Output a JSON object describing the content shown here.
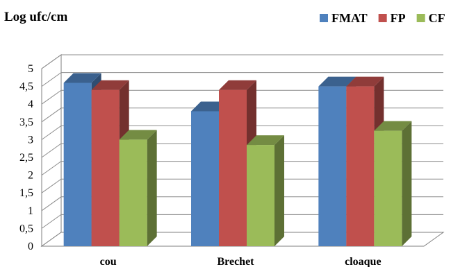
{
  "chart_data": {
    "type": "bar",
    "title": "",
    "xlabel": "",
    "ylabel": "Log ufc/cm",
    "categories": [
      "cou",
      "Brechet",
      "cloaque"
    ],
    "series": [
      {
        "name": "FMAT",
        "values": [
          4.6,
          3.8,
          4.5
        ],
        "color": "#4F81BD"
      },
      {
        "name": "FP",
        "values": [
          4.4,
          4.4,
          4.5
        ],
        "color": "#C0504D"
      },
      {
        "name": "CF",
        "values": [
          3.0,
          2.85,
          3.25
        ],
        "color": "#9BBB59"
      }
    ],
    "ylim": [
      0,
      5
    ],
    "yticks": [
      "0",
      "0,5",
      "1",
      "1,5",
      "2",
      "2,5",
      "3",
      "3,5",
      "4",
      "4,5",
      "5"
    ],
    "grid": true,
    "legend_position": "top-right",
    "style": "3d-clustered-column"
  }
}
